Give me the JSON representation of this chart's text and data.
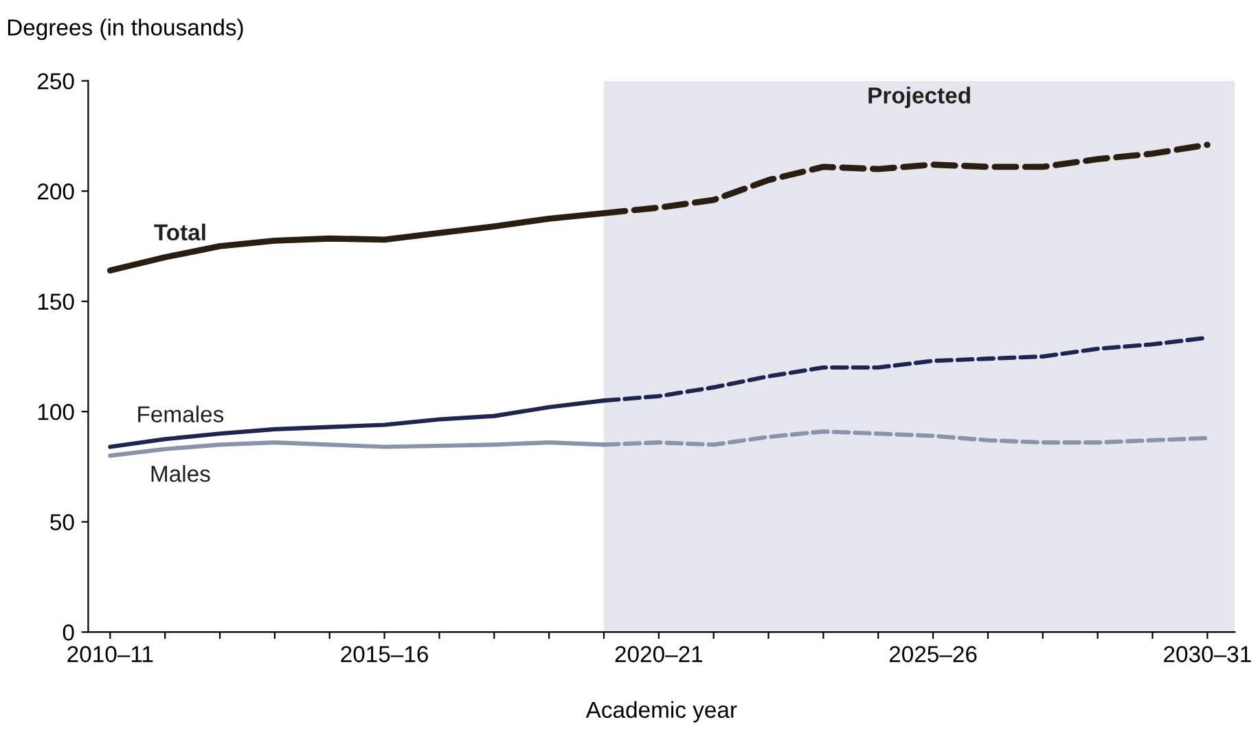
{
  "chart_data": {
    "type": "line",
    "xlabel": "Academic year",
    "ylabel": "Degrees (in thousands)",
    "categories": [
      "2010–11",
      null,
      null,
      null,
      null,
      "2015–16",
      null,
      null,
      null,
      null,
      "2020–21",
      null,
      null,
      null,
      null,
      "2025–26",
      null,
      null,
      null,
      null,
      "2030–31"
    ],
    "series": [
      {
        "name": "Total",
        "color": "#2a1e10",
        "line_style": "solid",
        "values": [
          164,
          170,
          175,
          177.5,
          178.5,
          178,
          181,
          184,
          187.5,
          190,
          null,
          null,
          null,
          null,
          null,
          null,
          null,
          null,
          null,
          null,
          null
        ]
      },
      {
        "color": "#2a1e10",
        "line_style": "dashed",
        "values": [
          null,
          null,
          null,
          null,
          null,
          null,
          null,
          null,
          null,
          190,
          192.5,
          196,
          205,
          211,
          210,
          212,
          211,
          211,
          214.5,
          217,
          221
        ]
      },
      {
        "name": "Females",
        "color": "#1f2451",
        "line_style": "solid",
        "values": [
          84,
          87.5,
          90,
          92,
          93,
          94,
          96.5,
          98,
          102,
          105,
          null,
          null,
          null,
          null,
          null,
          null,
          null,
          null,
          null,
          null,
          null
        ]
      },
      {
        "color": "#1f2451",
        "line_style": "dashed",
        "values": [
          null,
          null,
          null,
          null,
          null,
          null,
          null,
          null,
          null,
          105,
          107,
          111,
          116,
          120,
          120,
          123,
          124,
          125,
          128.5,
          130.5,
          133.5
        ]
      },
      {
        "name": "Males",
        "color": "#8b93ab",
        "line_style": "solid",
        "values": [
          80,
          83,
          85,
          86,
          85,
          84,
          84.5,
          85,
          86,
          85,
          null,
          null,
          null,
          null,
          null,
          null,
          null,
          null,
          null,
          null,
          null
        ]
      },
      {
        "color": "#8b93ab",
        "line_style": "dashed",
        "values": [
          null,
          null,
          null,
          null,
          null,
          null,
          null,
          null,
          null,
          85,
          86,
          85,
          88.5,
          91,
          90,
          89,
          87,
          86,
          86,
          87,
          88
        ]
      }
    ],
    "ylim": [
      0,
      250
    ],
    "yticks": [
      0,
      50,
      100,
      150,
      200,
      250
    ],
    "annotations": [
      "Projected"
    ],
    "grid": false,
    "legend": false
  }
}
